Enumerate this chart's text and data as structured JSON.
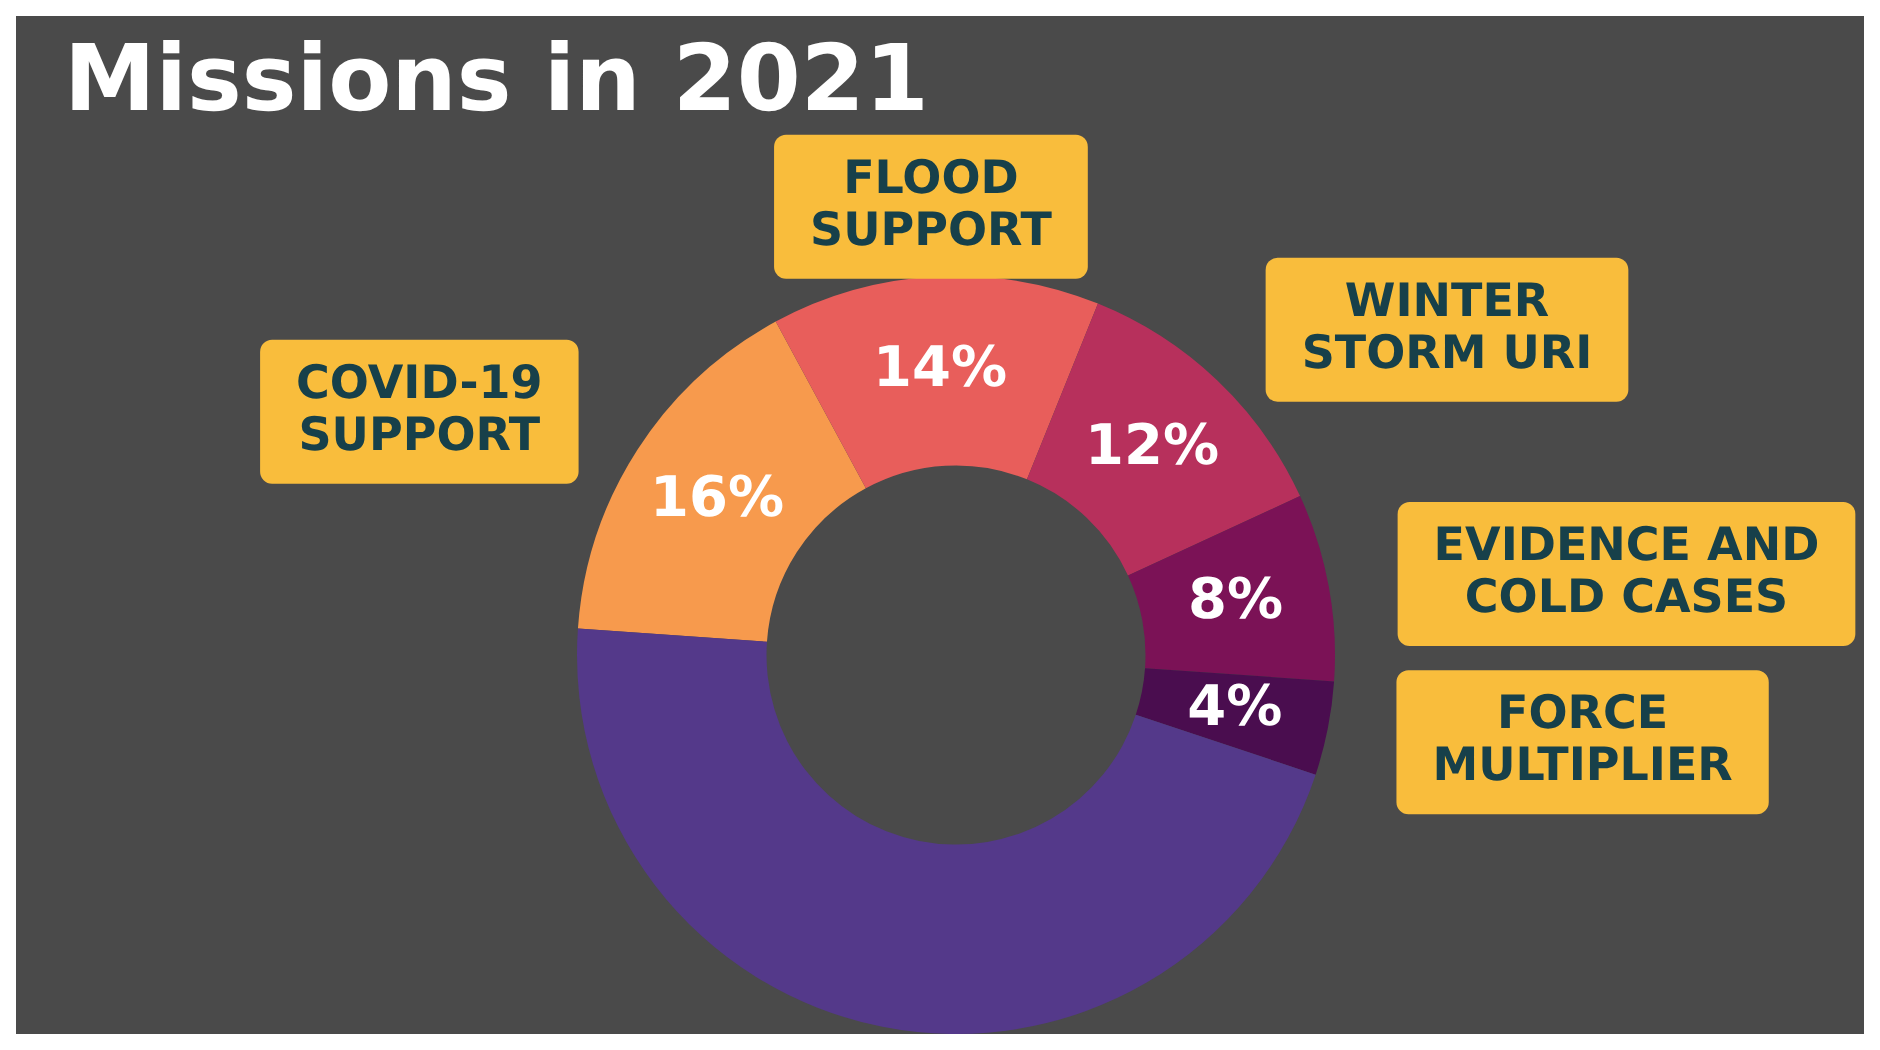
{
  "chart_data": {
    "type": "donut",
    "title": "Missions in 2021",
    "categories": [
      "COVID-19 SUPPORT",
      "FLOOD SUPPORT",
      "WINTER STORM URI",
      "EVIDENCE AND COLD CASES",
      "FORCE MULTIPLIER",
      null
    ],
    "values": [
      16,
      14,
      12,
      8,
      4,
      46
    ],
    "colors": [
      "#f79a4d",
      "#e85e5b",
      "#b7305c",
      "#7b1256",
      "#4a0d4f",
      "#54398a"
    ],
    "value_labels": [
      "16%",
      "14%",
      "12%",
      "8%",
      "4%",
      null
    ],
    "legend": false
  }
}
